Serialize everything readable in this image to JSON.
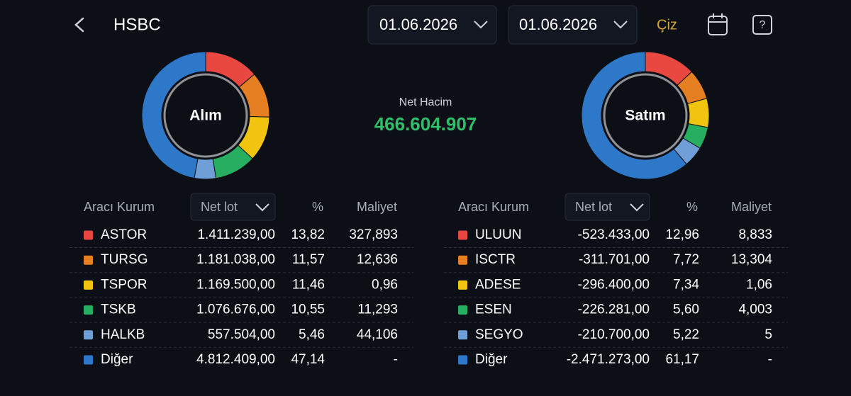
{
  "header": {
    "title": "HSBC",
    "date_from": "01.06.2026",
    "date_to": "01.06.2026",
    "draw_button": "Çiz"
  },
  "summary": {
    "label": "Net Hacim",
    "value": "466.604.907"
  },
  "sides": [
    {
      "title": "Alım",
      "columns": [
        "Aracı Kurum",
        "Net lot",
        "%",
        "Maliyet"
      ],
      "rows": [
        {
          "name": "ASTOR",
          "color": "#e8483f",
          "net_lot": "1.411.239,00",
          "pct": 13.82,
          "pct_label": "13,82",
          "cost": "327,893"
        },
        {
          "name": "TURSG",
          "color": "#e67e22",
          "net_lot": "1.181.038,00",
          "pct": 11.57,
          "pct_label": "11,57",
          "cost": "12,636"
        },
        {
          "name": "TSPOR",
          "color": "#f1c40f",
          "net_lot": "1.169.500,00",
          "pct": 11.46,
          "pct_label": "11,46",
          "cost": "0,96"
        },
        {
          "name": "TSKB",
          "color": "#27ae60",
          "net_lot": "1.076.676,00",
          "pct": 10.55,
          "pct_label": "10,55",
          "cost": "11,293"
        },
        {
          "name": "HALKB",
          "color": "#6f9fd6",
          "net_lot": "557.504,00",
          "pct": 5.46,
          "pct_label": "5,46",
          "cost": "44,106"
        },
        {
          "name": "Diğer",
          "color": "#2d78c8",
          "net_lot": "4.812.409,00",
          "pct": 47.14,
          "pct_label": "47,14",
          "cost": "-"
        }
      ]
    },
    {
      "title": "Satım",
      "columns": [
        "Aracı Kurum",
        "Net lot",
        "%",
        "Maliyet"
      ],
      "rows": [
        {
          "name": "ULUUN",
          "color": "#e8483f",
          "net_lot": "-523.433,00",
          "pct": 12.96,
          "pct_label": "12,96",
          "cost": "8,833"
        },
        {
          "name": "ISCTR",
          "color": "#e67e22",
          "net_lot": "-311.701,00",
          "pct": 7.72,
          "pct_label": "7,72",
          "cost": "13,304"
        },
        {
          "name": "ADESE",
          "color": "#f1c40f",
          "net_lot": "-296.400,00",
          "pct": 7.34,
          "pct_label": "7,34",
          "cost": "1,06"
        },
        {
          "name": "ESEN",
          "color": "#27ae60",
          "net_lot": "-226.281,00",
          "pct": 5.6,
          "pct_label": "5,60",
          "cost": "4,003"
        },
        {
          "name": "SEGYO",
          "color": "#6f9fd6",
          "net_lot": "-210.700,00",
          "pct": 5.22,
          "pct_label": "5,22",
          "cost": "5"
        },
        {
          "name": "Diğer",
          "color": "#2d78c8",
          "net_lot": "-2.471.273,00",
          "pct": 61.17,
          "pct_label": "61,17",
          "cost": "-"
        }
      ]
    }
  ]
}
